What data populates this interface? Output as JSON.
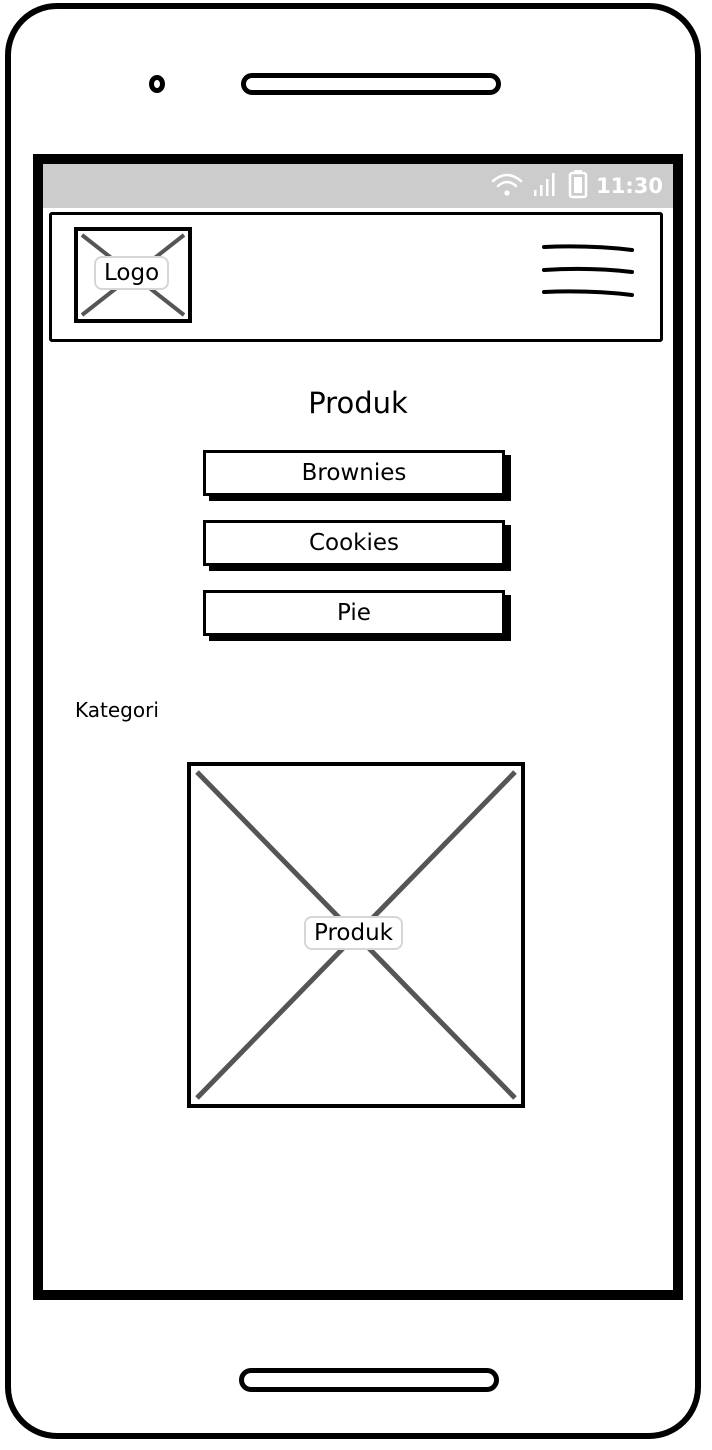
{
  "status_bar": {
    "time": "11:30",
    "icons": [
      "wifi-icon",
      "signal-icon",
      "battery-icon"
    ]
  },
  "header": {
    "logo_label": "Logo",
    "menu_icon": "hamburger-menu-icon"
  },
  "main": {
    "title": "Produk",
    "products": [
      {
        "label": "Brownies"
      },
      {
        "label": "Cookies"
      },
      {
        "label": "Pie"
      }
    ],
    "category_label": "Kategori",
    "image_placeholder_label": "Produk"
  },
  "colors": {
    "status_bar_bg": "#cccccc",
    "stroke": "#000000",
    "placeholder_cross": "#555555",
    "placeholder_label_border": "#d6d6d6"
  }
}
